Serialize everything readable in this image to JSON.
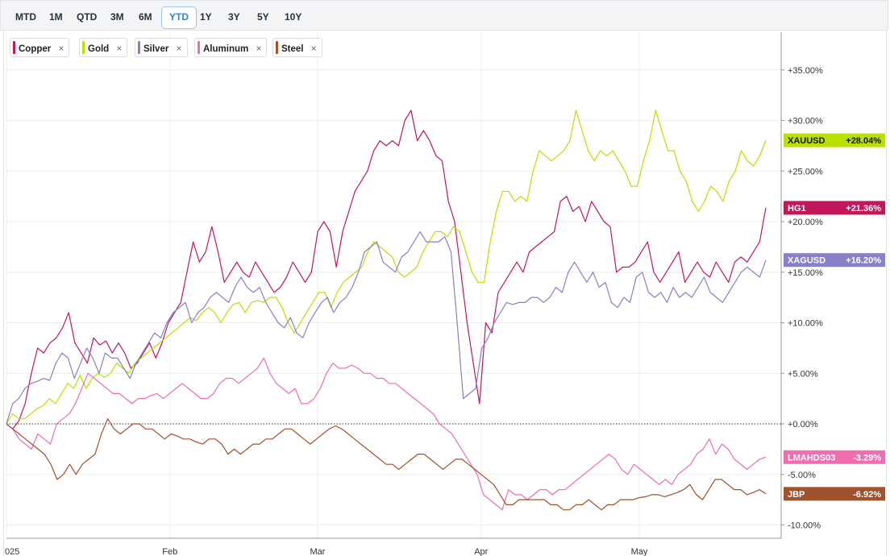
{
  "ranges": [
    "MTD",
    "1M",
    "QTD",
    "3M",
    "6M",
    "YTD",
    "1Y",
    "3Y",
    "5Y",
    "10Y"
  ],
  "active_range": "YTD",
  "legend": [
    {
      "label": "Copper",
      "color": "#c2185b"
    },
    {
      "label": "Gold",
      "color": "#b8e000"
    },
    {
      "label": "Silver",
      "color": "#8781c9"
    },
    {
      "label": "Aluminum",
      "color": "#f06eb0"
    },
    {
      "label": "Steel",
      "color": "#a0522d"
    }
  ],
  "close_symbol": "×",
  "chart_data": {
    "type": "line",
    "yunit": "%",
    "ylim": [
      -11,
      38
    ],
    "y_ticks": [
      "+35.00%",
      "+30.00%",
      "+25.00%",
      "+20.00%",
      "+15.00%",
      "+10.00%",
      "+5.00%",
      "+0.00%",
      "-5.00%",
      "-10.00%"
    ],
    "y_tick_values": [
      35,
      30,
      25,
      20,
      15,
      10,
      5,
      0,
      -5,
      -10
    ],
    "x_labels": [
      {
        "label": "025",
        "t": 0
      },
      {
        "label": "Feb",
        "t": 31
      },
      {
        "label": "Mar",
        "t": 59
      },
      {
        "label": "Apr",
        "t": 90
      },
      {
        "label": "May",
        "t": 120
      }
    ],
    "x_range": [
      0,
      144
    ],
    "grid": true,
    "zero_line": "dotted",
    "series": [
      {
        "name": "Copper",
        "ticker": "HG1",
        "color": "#c2185b",
        "last_label": "+21.36%",
        "values": [
          0,
          -0.5,
          0.3,
          2,
          5,
          7.5,
          7,
          8,
          8.5,
          9.5,
          11,
          8,
          7,
          6,
          8.5,
          7.8,
          8.2,
          7,
          8,
          7,
          5.5,
          6,
          7,
          8,
          6.5,
          8,
          10,
          11,
          12,
          15,
          18,
          16,
          17,
          19.5,
          17,
          14,
          15,
          16,
          15,
          14.5,
          16,
          15,
          14,
          13,
          13.5,
          14.5,
          16,
          15,
          14,
          15,
          19,
          20,
          19,
          15.5,
          19,
          21,
          23,
          24,
          25,
          27,
          28,
          27.5,
          28,
          27.5,
          30,
          31,
          28,
          29,
          28,
          26.5,
          26,
          22,
          20,
          15,
          10,
          6,
          2,
          10,
          9,
          13,
          14,
          15,
          16,
          15,
          17,
          17.5,
          18,
          18.5,
          19,
          22,
          22.5,
          21,
          21.5,
          20,
          22,
          21,
          20,
          19.5,
          15,
          15.5,
          15.5,
          16,
          17,
          18,
          15,
          14,
          15,
          16,
          17,
          14,
          15,
          16,
          15,
          14.5,
          16,
          15,
          14,
          16,
          16.5,
          16,
          17,
          18,
          21.36
        ]
      },
      {
        "name": "Gold",
        "ticker": "XAUUSD",
        "color": "#b8e000",
        "last_label": "+28.04%",
        "values": [
          0,
          1,
          0.5,
          0.5,
          1,
          1.5,
          1.8,
          2.5,
          2,
          3,
          4,
          3.5,
          4.8,
          3.5,
          4.5,
          5,
          4.6,
          5,
          6,
          5.5,
          5,
          6,
          6.5,
          7,
          7.5,
          8,
          8.5,
          9,
          9.5,
          10,
          10.5,
          10.2,
          11,
          11.5,
          11,
          10,
          11,
          11.8,
          12,
          11,
          12,
          12.2,
          12,
          12.5,
          12.5,
          11.5,
          10,
          9,
          10,
          11,
          12,
          13,
          13,
          11.5,
          13,
          14,
          14.5,
          15,
          15.5,
          17,
          18,
          17.5,
          17,
          16.5,
          15,
          14.5,
          15,
          15.5,
          17,
          18,
          19,
          19,
          18.5,
          19.5,
          19,
          17,
          15,
          14,
          14,
          18,
          21,
          23,
          23,
          22,
          22.5,
          22,
          25,
          27,
          26.5,
          26,
          26.5,
          27,
          28,
          31,
          29,
          27,
          26,
          27,
          26.5,
          27,
          26,
          25,
          23.5,
          23.5,
          26,
          28,
          31,
          29,
          27,
          27,
          25,
          24,
          22,
          21,
          22,
          23.5,
          23,
          22,
          24,
          25,
          27,
          26,
          25.5,
          26.5,
          28.04
        ]
      },
      {
        "name": "Silver",
        "ticker": "XAGUSD",
        "color": "#8781c9",
        "last_label": "+16.20%",
        "values": [
          0,
          2,
          2.5,
          3.5,
          4,
          4.2,
          4.5,
          4.3,
          6,
          7,
          6.5,
          4.5,
          6,
          7.5,
          6.5,
          5,
          7,
          6.5,
          6.5,
          5.5,
          4.5,
          6,
          7,
          8,
          9,
          8.5,
          10,
          11,
          11.5,
          12,
          10,
          11,
          11.5,
          12.5,
          13,
          12.5,
          12,
          13.5,
          14.5,
          13.5,
          13,
          13.5,
          12,
          11,
          10,
          9.5,
          10.5,
          9,
          8.5,
          10,
          11,
          12,
          12.5,
          11,
          12,
          12.5,
          13.5,
          15,
          17,
          17.5,
          18,
          16,
          15.5,
          15,
          16.5,
          17,
          18,
          19,
          18,
          18,
          18,
          18.5,
          17,
          10,
          2.5,
          3,
          3.5,
          7.5,
          8.5,
          10,
          11,
          12,
          11.8,
          12,
          12,
          12.5,
          12.5,
          12,
          12.5,
          13.5,
          13,
          15,
          16,
          15,
          14,
          15,
          13.5,
          14,
          12,
          11.5,
          12.5,
          12,
          14.5,
          15,
          13,
          12.5,
          13,
          12,
          13.5,
          12.5,
          13,
          12.5,
          13.5,
          14.5,
          13,
          12.5,
          12,
          13,
          14,
          15,
          15.5,
          15,
          14.5,
          16.2
        ]
      },
      {
        "name": "Aluminum",
        "ticker": "LMAHDS03",
        "color": "#f06eb0",
        "last_label": "-3.29%",
        "values": [
          0,
          -0.5,
          -1.5,
          -2,
          -2.5,
          -1,
          -1.5,
          -2,
          0,
          0.5,
          1,
          2,
          3.5,
          5,
          4.5,
          4,
          3.5,
          3,
          3,
          2.5,
          2,
          2.5,
          2.5,
          2.8,
          3,
          2.5,
          3,
          3.5,
          4,
          3.5,
          3,
          2.5,
          2.5,
          3,
          4,
          4.5,
          4.5,
          4,
          4.5,
          5,
          5.5,
          6.5,
          5,
          4,
          3.5,
          3,
          3.5,
          2,
          2,
          2.5,
          3.5,
          5,
          6,
          5.5,
          5.5,
          5.8,
          5.5,
          5,
          5,
          4.5,
          4.5,
          4,
          4,
          3.5,
          3,
          2.5,
          2,
          1.5,
          1,
          0,
          -0.5,
          -1,
          -2,
          -3,
          -4,
          -5,
          -7,
          -7.5,
          -8,
          -8.5,
          -6.5,
          -7,
          -7,
          -7.5,
          -7,
          -6.5,
          -6.5,
          -7,
          -6.5,
          -6.5,
          -6,
          -5.5,
          -5,
          -4.5,
          -4,
          -3.5,
          -3,
          -3.5,
          -4.5,
          -5,
          -4,
          -4.5,
          -5,
          -5.5,
          -6,
          -5.5,
          -6,
          -5,
          -4.5,
          -4,
          -3,
          -2.5,
          -1.5,
          -3,
          -2,
          -2.5,
          -3.5,
          -4,
          -4.5,
          -4,
          -3.5,
          -3.29
        ]
      },
      {
        "name": "Steel",
        "ticker": "JBP",
        "color": "#a0522d",
        "last_label": "-6.92%",
        "values": [
          0,
          -0.5,
          -1,
          -1.5,
          -2,
          -2.5,
          -3,
          -4,
          -5.5,
          -5,
          -4,
          -5,
          -4,
          -3.5,
          -3,
          -1,
          0.5,
          -0.5,
          -1,
          -0.5,
          0,
          0,
          -0.5,
          -0.5,
          -1,
          -1.5,
          -1,
          -1.2,
          -1.5,
          -1.5,
          -1.8,
          -2,
          -1.5,
          -1.5,
          -2,
          -3,
          -2.5,
          -3,
          -2.5,
          -2,
          -2,
          -1.5,
          -1.5,
          -1,
          -0.5,
          -0.5,
          -1,
          -1.5,
          -2,
          -1.5,
          -1,
          -0.5,
          -0.2,
          -0.5,
          -1,
          -1.5,
          -2,
          -2.5,
          -3,
          -3.5,
          -4,
          -4,
          -4.5,
          -4,
          -3.5,
          -3,
          -3,
          -3.5,
          -4,
          -4.5,
          -4,
          -3.5,
          -3.5,
          -4,
          -4.5,
          -5,
          -5.5,
          -6,
          -7,
          -8,
          -8,
          -7.5,
          -7.5,
          -7.5,
          -7.5,
          -7.5,
          -8,
          -8,
          -8.5,
          -8.5,
          -8,
          -8,
          -7.5,
          -8,
          -8.5,
          -8,
          -8,
          -7.5,
          -7.5,
          -7.5,
          -7.3,
          -7.2,
          -7,
          -7,
          -7.2,
          -7,
          -6.8,
          -6.5,
          -6,
          -7,
          -7.5,
          -6.5,
          -5.5,
          -5.5,
          -6,
          -6.5,
          -6.5,
          -7,
          -6.8,
          -6.5,
          -6.92
        ]
      }
    ]
  }
}
